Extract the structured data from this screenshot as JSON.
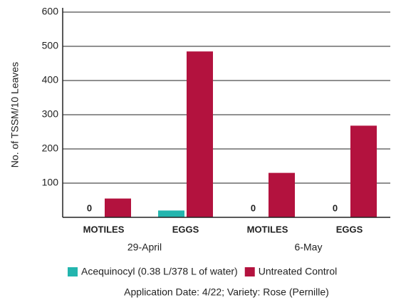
{
  "chart_data": {
    "type": "bar",
    "y_label": "No. of TSSM/10 Leaves",
    "categories": [
      "MOTILES",
      "EGGS",
      "MOTILES",
      "EGGS"
    ],
    "group_labels": [
      "29-April",
      "6-May"
    ],
    "series": [
      {
        "name": "Acequinocyl (0.38 L/378 L of water)",
        "color": "#23b5ae",
        "values": [
          0,
          20,
          0,
          0
        ],
        "value_labels": [
          "0",
          null,
          "0",
          "0"
        ]
      },
      {
        "name": "Untreated Control",
        "color": "#b3123e",
        "values": [
          55,
          485,
          130,
          268
        ]
      }
    ],
    "ylim": [
      0,
      600
    ],
    "yticks": [
      100,
      200,
      300,
      400,
      500,
      600
    ],
    "grid": true,
    "note": "Application Date: 4/22; Variety: Rose (Pernille)"
  }
}
